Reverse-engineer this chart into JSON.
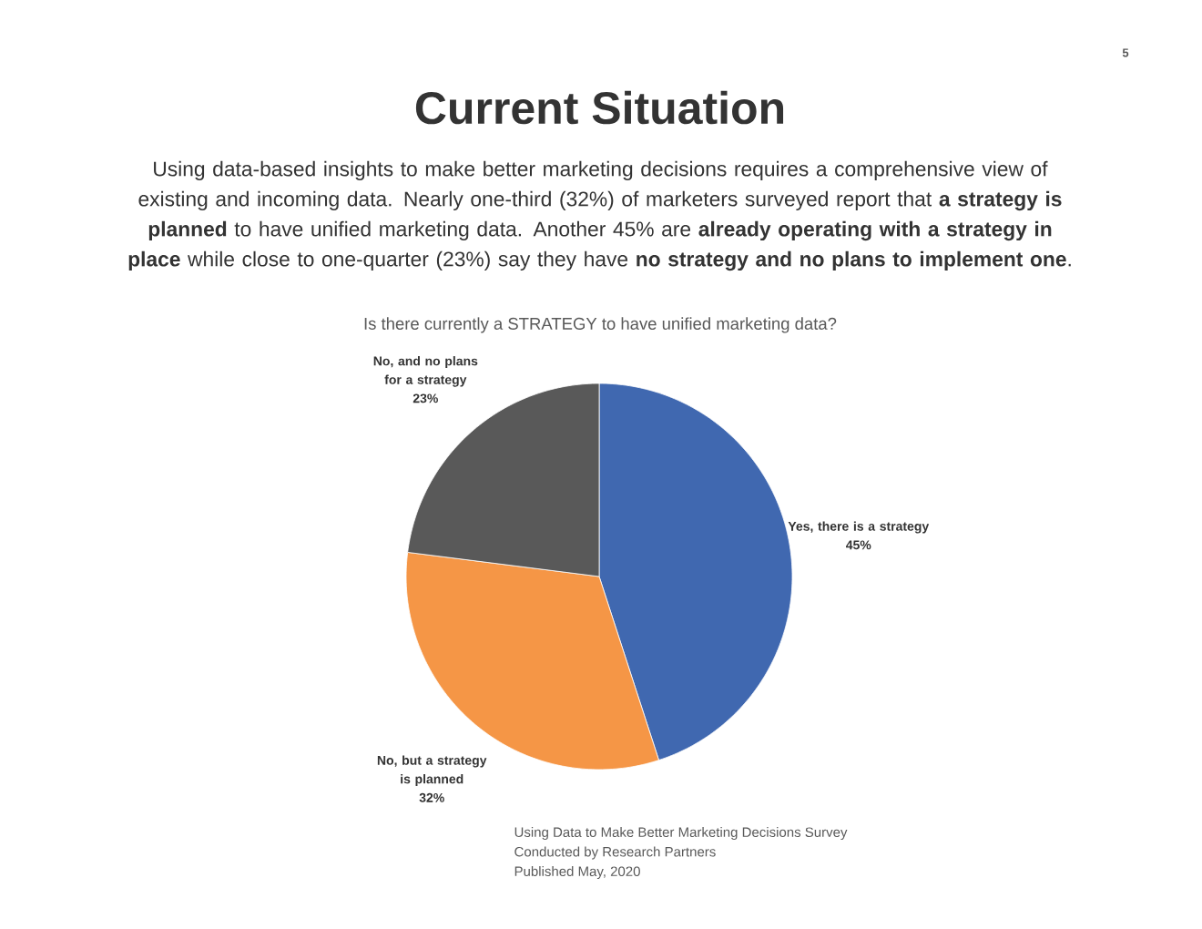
{
  "chart_data": {
    "type": "pie",
    "title": "Current Situation",
    "subtitle": "Using data-based insights to make better marketing decisions requires a comprehensive view of existing and incoming data. Nearly one-third (32%) of marketers surveyed report that **a strategy is planned** to have unified marketing data. Another 45% are **already operating with a strategy in place** while close to one-quarter (23%) say they have **no strategy and no plans to implement one**.",
    "categories": [
      "Yes, there is a strategy",
      "No, but a strategy is planned",
      "No, and no plans for a strategy"
    ],
    "values": [
      45,
      32,
      23
    ],
    "value_labels": [
      "45%",
      "32%",
      "23%"
    ],
    "colors": [
      "#4068b0",
      "#f59646",
      "#595959"
    ],
    "annotations": [
      "5",
      "Is there currently a STRATEGY to have unified marketing data?",
      "Using Data to Make Better Marketing Decisions Survey",
      "Conducted by Research Partners",
      "Published May, 2020"
    ]
  }
}
